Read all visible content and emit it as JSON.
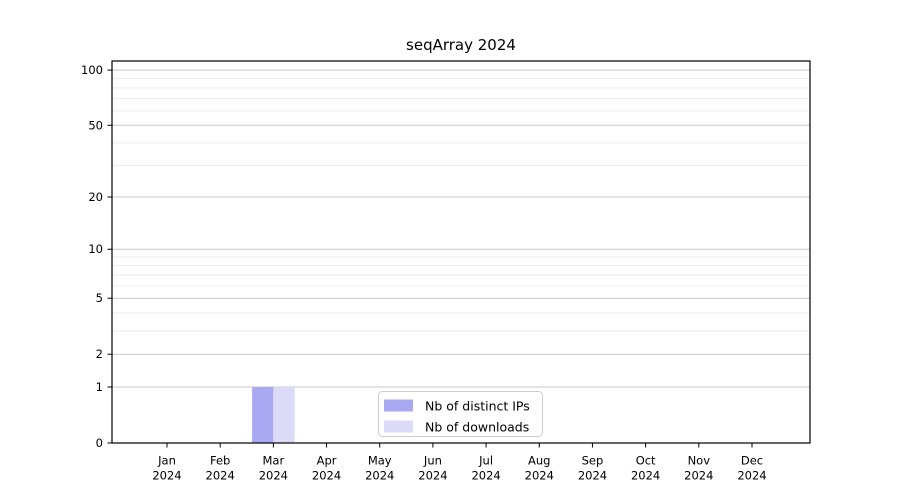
{
  "figure": {
    "background": "#ffffff"
  },
  "chart_data": {
    "type": "bar",
    "title": "seqArray 2024",
    "categories": [
      "Jan",
      "Feb",
      "Mar",
      "Apr",
      "May",
      "Jun",
      "Jul",
      "Aug",
      "Sep",
      "Oct",
      "Nov",
      "Dec"
    ],
    "category_year": "2024",
    "series": [
      {
        "name": "Nb of distinct IPs",
        "color": "#a9a9f3",
        "values": [
          0,
          0,
          1,
          0,
          0,
          0,
          0,
          0,
          0,
          0,
          0,
          0
        ]
      },
      {
        "name": "Nb of downloads",
        "color": "#dbdbf8",
        "values": [
          0,
          0,
          1,
          0,
          0,
          0,
          0,
          0,
          0,
          0,
          0,
          0
        ]
      }
    ],
    "xlabel": "",
    "ylabel": "",
    "y_axis": {
      "scale": "log1p",
      "major_ticks": [
        0,
        1,
        2,
        5,
        10,
        20,
        50,
        100
      ],
      "minor_gridlines": [
        3,
        4,
        6,
        7,
        8,
        9,
        30,
        40,
        60,
        70,
        80,
        90
      ],
      "ylim": [
        0,
        112
      ]
    },
    "grid": "both",
    "legend": {
      "position": "bottom-center-inside",
      "entries": [
        "Nb of distinct IPs",
        "Nb of downloads"
      ]
    }
  },
  "colors": {
    "major_grid": "#c9c9c9",
    "minor_grid": "#ededed",
    "axis": "#000000",
    "legend_border": "#cccccc",
    "legend_bg": "#ffffff",
    "text": "#000000"
  }
}
